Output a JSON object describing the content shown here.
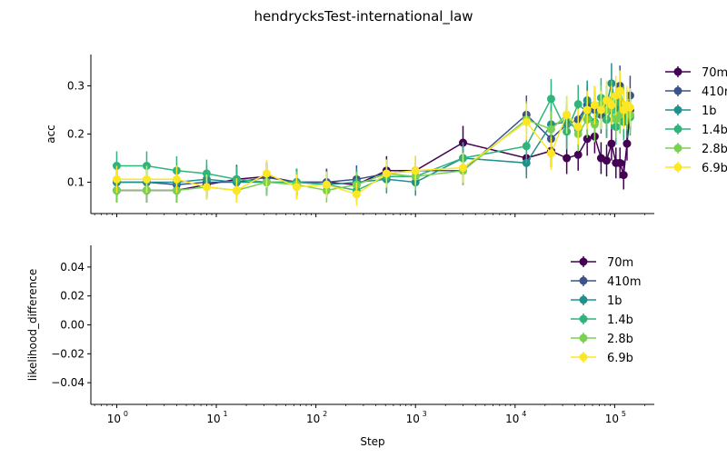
{
  "chart_data": [
    {
      "type": "line",
      "title": "hendrycksTest-international_law",
      "xlabel": "",
      "ylabel": "acc",
      "xscale": "log",
      "xlim": [
        0.55,
        250000
      ],
      "ylim": [
        0.035,
        0.365
      ],
      "yticks": [
        0.1,
        0.2,
        0.3
      ],
      "ytick_labels": [
        "0.1",
        "0.2",
        "0.3"
      ],
      "legend_position": "right, outside plot",
      "error_bars": true,
      "x": [
        1,
        2,
        4,
        8,
        16,
        32,
        64,
        128,
        256,
        512,
        1000,
        3000,
        13000,
        23000,
        33000,
        43000,
        53000,
        63000,
        73000,
        83000,
        93000,
        103000,
        113000,
        123000,
        133000,
        143000
      ],
      "series": [
        {
          "name": "70m",
          "color": "#440154",
          "values": [
            0.083,
            0.083,
            0.083,
            0.095,
            0.106,
            0.112,
            0.1,
            0.1,
            0.095,
            0.124,
            0.124,
            0.182,
            0.15,
            0.165,
            0.15,
            0.157,
            0.19,
            0.195,
            0.15,
            0.145,
            0.18,
            0.14,
            0.14,
            0.115,
            0.18,
            0.25
          ],
          "errors": [
            0.025,
            0.025,
            0.025,
            0.028,
            0.03,
            0.03,
            0.028,
            0.028,
            0.028,
            0.03,
            0.03,
            0.035,
            0.033,
            0.034,
            0.033,
            0.033,
            0.035,
            0.035,
            0.033,
            0.033,
            0.035,
            0.032,
            0.032,
            0.03,
            0.035,
            0.04
          ]
        },
        {
          "name": "410m",
          "color": "#3b528b",
          "values": [
            0.1,
            0.1,
            0.095,
            0.1,
            0.1,
            0.11,
            0.1,
            0.1,
            0.106,
            0.118,
            0.124,
            0.124,
            0.24,
            0.19,
            0.22,
            0.23,
            0.26,
            0.25,
            0.24,
            0.23,
            0.25,
            0.26,
            0.3,
            0.23,
            0.25,
            0.28
          ],
          "errors": [
            0.028,
            0.028,
            0.027,
            0.028,
            0.028,
            0.029,
            0.028,
            0.028,
            0.029,
            0.03,
            0.03,
            0.03,
            0.04,
            0.036,
            0.038,
            0.038,
            0.04,
            0.04,
            0.039,
            0.038,
            0.04,
            0.04,
            0.042,
            0.038,
            0.04,
            0.041
          ]
        },
        {
          "name": "1b",
          "color": "#21908d",
          "values": [
            0.1,
            0.1,
            0.1,
            0.106,
            0.1,
            0.1,
            0.1,
            0.095,
            0.1,
            0.106,
            0.1,
            0.15,
            0.14,
            0.22,
            0.225,
            0.21,
            0.27,
            0.26,
            0.25,
            0.26,
            0.305,
            0.25,
            0.29,
            0.26,
            0.23,
            0.24
          ],
          "errors": [
            0.028,
            0.028,
            0.028,
            0.029,
            0.028,
            0.028,
            0.028,
            0.027,
            0.028,
            0.029,
            0.028,
            0.033,
            0.032,
            0.038,
            0.038,
            0.037,
            0.041,
            0.04,
            0.04,
            0.04,
            0.042,
            0.04,
            0.042,
            0.04,
            0.038,
            0.039
          ]
        },
        {
          "name": "1.4b",
          "color": "#2fb47c",
          "values": [
            0.134,
            0.134,
            0.124,
            0.118,
            0.106,
            0.1,
            0.1,
            0.095,
            0.083,
            0.112,
            0.112,
            0.15,
            0.175,
            0.273,
            0.205,
            0.262,
            0.245,
            0.225,
            0.275,
            0.23,
            0.25,
            0.215,
            0.265,
            0.225,
            0.245,
            0.235
          ],
          "errors": [
            0.03,
            0.03,
            0.03,
            0.029,
            0.028,
            0.028,
            0.028,
            0.027,
            0.025,
            0.029,
            0.029,
            0.033,
            0.035,
            0.041,
            0.037,
            0.04,
            0.04,
            0.038,
            0.041,
            0.038,
            0.04,
            0.037,
            0.04,
            0.038,
            0.039,
            0.038
          ]
        },
        {
          "name": "2.8b",
          "color": "#7ad151",
          "values": [
            0.083,
            0.083,
            0.083,
            0.09,
            0.083,
            0.1,
            0.095,
            0.083,
            0.095,
            0.118,
            0.112,
            0.124,
            0.23,
            0.21,
            0.24,
            0.2,
            0.23,
            0.22,
            0.26,
            0.25,
            0.27,
            0.23,
            0.24,
            0.26,
            0.25,
            0.24
          ],
          "errors": [
            0.025,
            0.025,
            0.025,
            0.026,
            0.025,
            0.028,
            0.027,
            0.025,
            0.027,
            0.029,
            0.029,
            0.03,
            0.038,
            0.037,
            0.039,
            0.036,
            0.038,
            0.037,
            0.04,
            0.04,
            0.041,
            0.038,
            0.039,
            0.04,
            0.04,
            0.039
          ]
        },
        {
          "name": "6.9b",
          "color": "#fde725",
          "values": [
            0.106,
            0.106,
            0.106,
            0.09,
            0.083,
            0.118,
            0.09,
            0.095,
            0.075,
            0.118,
            0.124,
            0.13,
            0.225,
            0.16,
            0.24,
            0.215,
            0.25,
            0.26,
            0.25,
            0.27,
            0.26,
            0.28,
            0.29,
            0.25,
            0.26,
            0.255
          ],
          "errors": [
            0.028,
            0.028,
            0.028,
            0.026,
            0.025,
            0.029,
            0.026,
            0.027,
            0.024,
            0.029,
            0.03,
            0.031,
            0.038,
            0.034,
            0.039,
            0.037,
            0.04,
            0.04,
            0.04,
            0.041,
            0.04,
            0.041,
            0.042,
            0.04,
            0.04,
            0.04
          ]
        }
      ]
    },
    {
      "type": "line",
      "title": "",
      "xlabel": "Step",
      "ylabel": "likelihood_difference",
      "xscale": "log",
      "xlim": [
        0.55,
        250000
      ],
      "ylim": [
        -0.055,
        0.055
      ],
      "yticks": [
        -0.04,
        -0.02,
        0.0,
        0.02,
        0.04
      ],
      "ytick_labels": [
        "−0.04",
        "−0.02",
        "0.00",
        "0.02",
        "0.04"
      ],
      "xticks": [
        1,
        10,
        100,
        1000,
        10000,
        100000
      ],
      "xtick_labels": [
        {
          "base": "10",
          "exp": "0"
        },
        {
          "base": "10",
          "exp": "1"
        },
        {
          "base": "10",
          "exp": "2"
        },
        {
          "base": "10",
          "exp": "3"
        },
        {
          "base": "10",
          "exp": "4"
        },
        {
          "base": "10",
          "exp": "5"
        }
      ],
      "legend_position": "upper right, inside plot",
      "series": [
        {
          "name": "70m",
          "color": "#440154",
          "values": []
        },
        {
          "name": "410m",
          "color": "#3b528b",
          "values": []
        },
        {
          "name": "1b",
          "color": "#21908d",
          "values": []
        },
        {
          "name": "1.4b",
          "color": "#2fb47c",
          "values": []
        },
        {
          "name": "2.8b",
          "color": "#7ad151",
          "values": []
        },
        {
          "name": "6.9b",
          "color": "#fde725",
          "values": []
        }
      ]
    }
  ]
}
